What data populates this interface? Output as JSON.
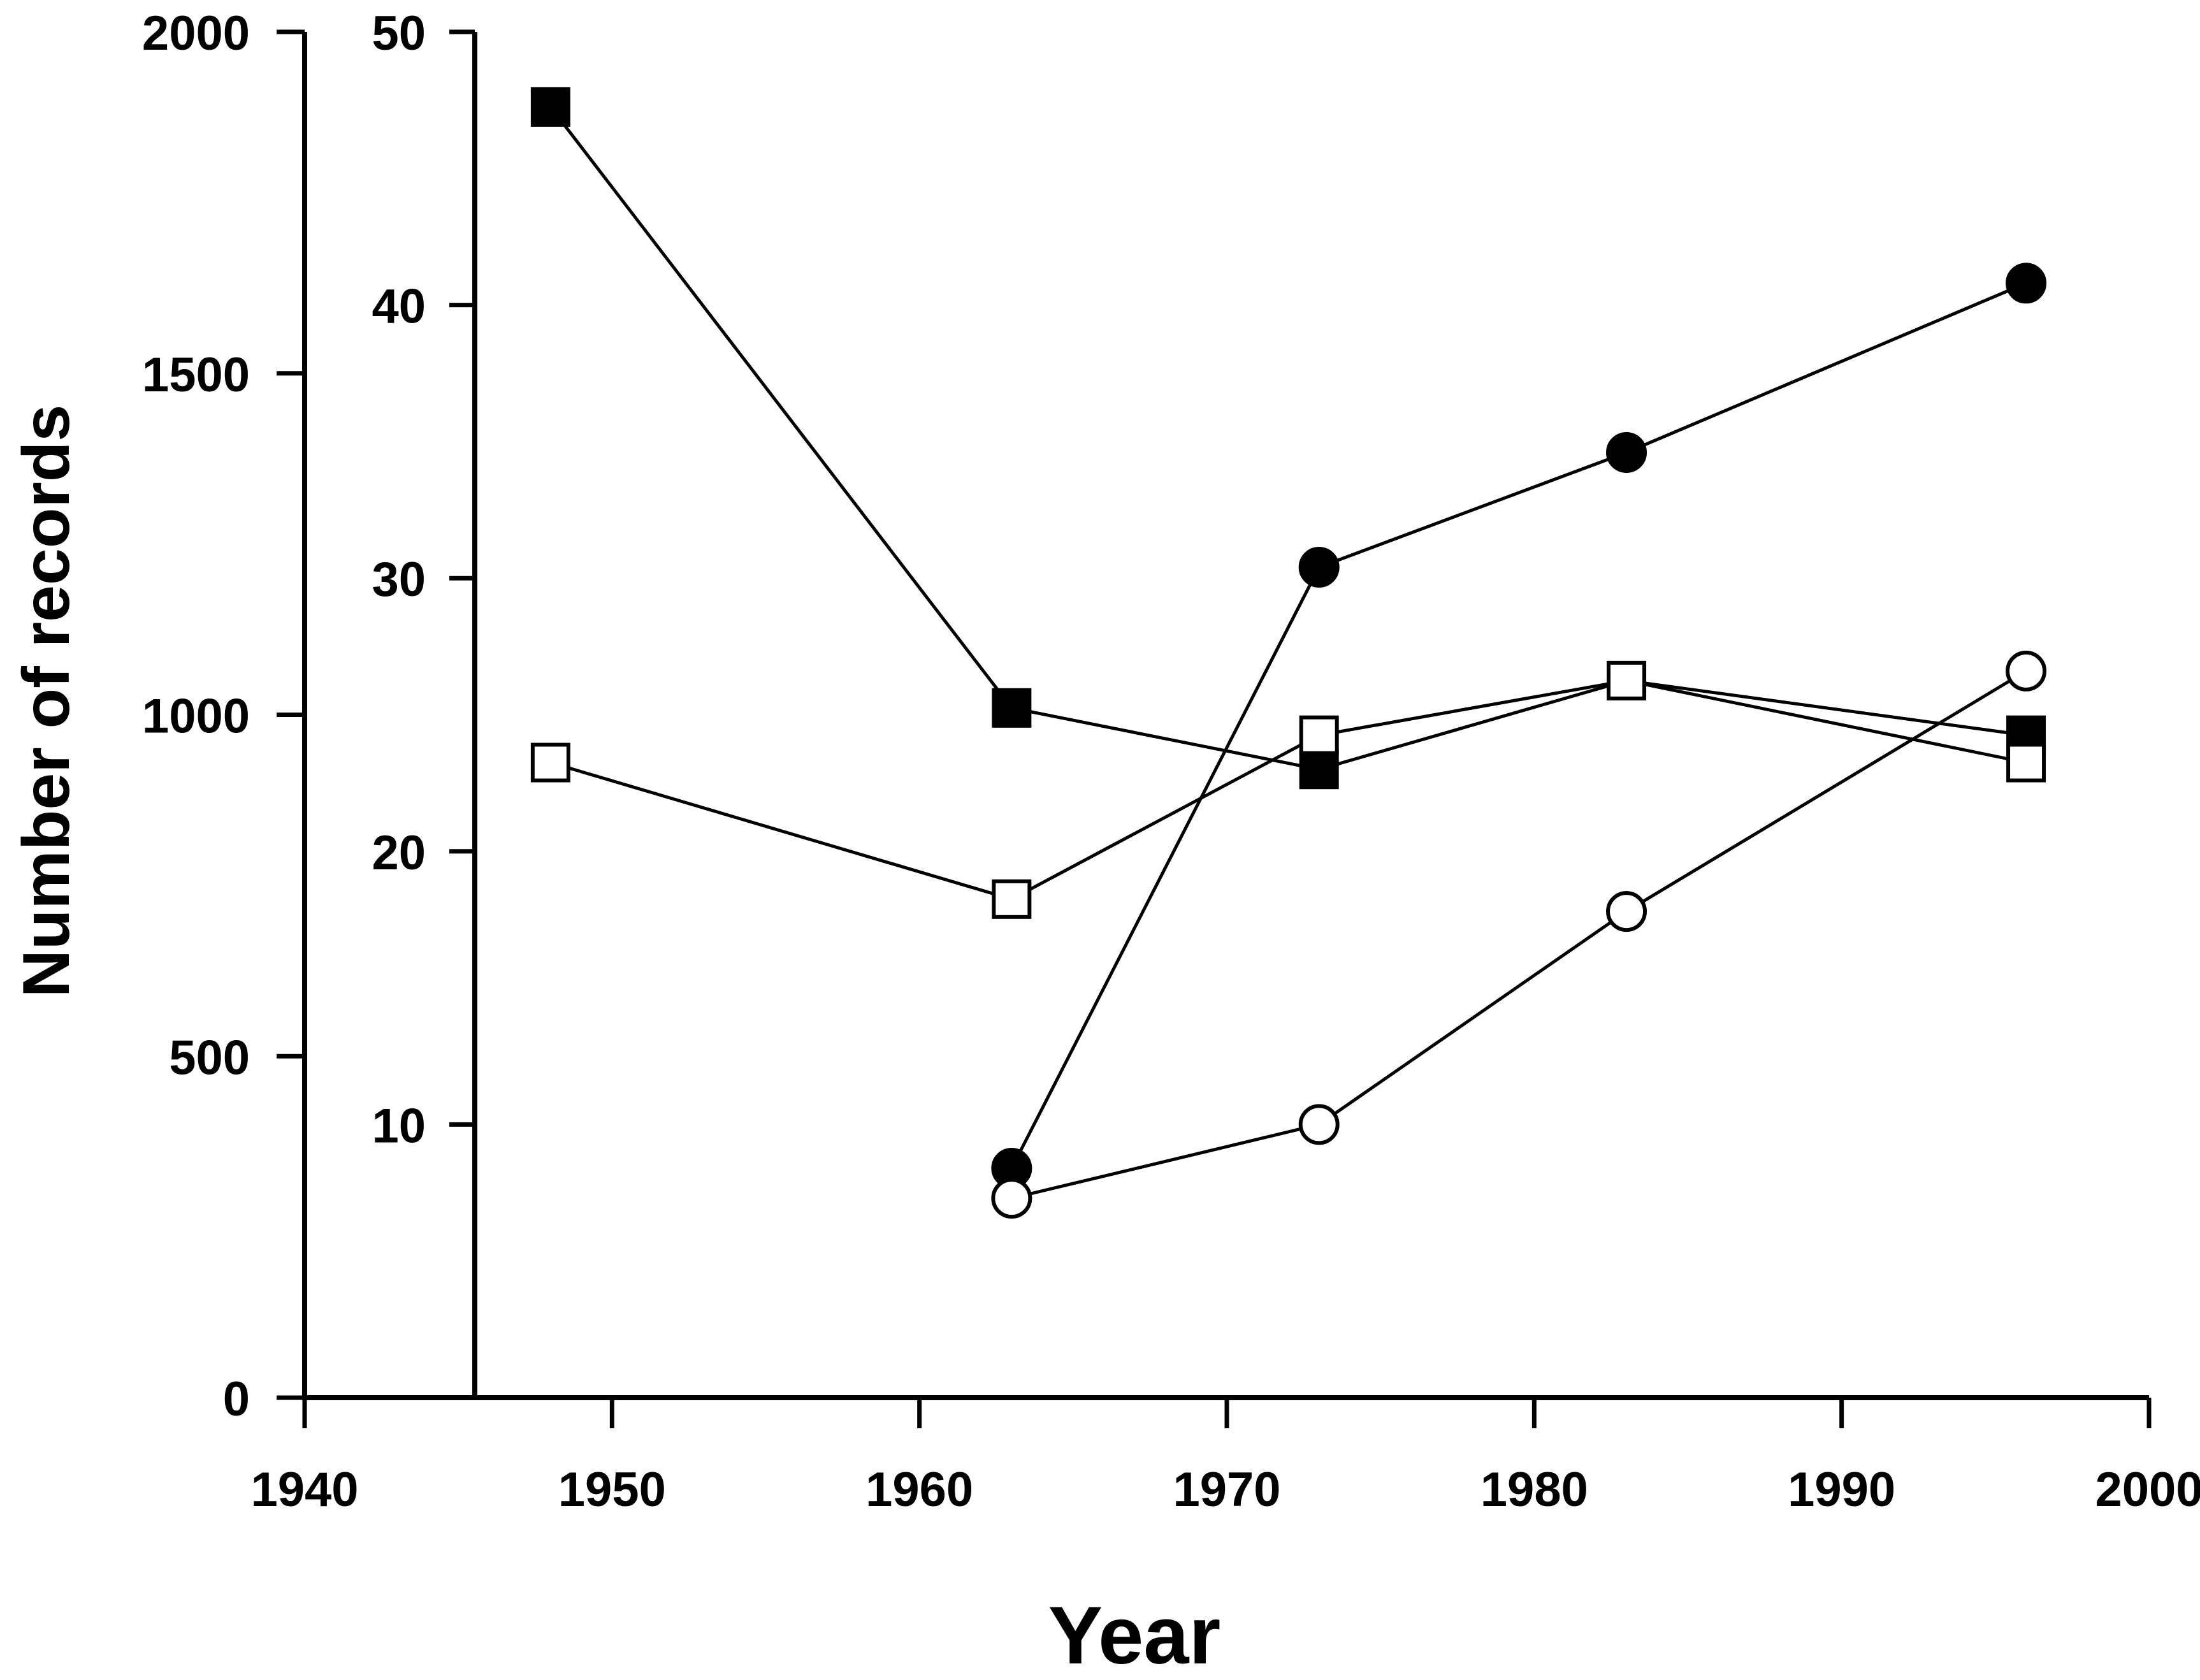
{
  "chart_data": {
    "type": "line",
    "xlabel": "Year",
    "ylabel": "Number of records",
    "xlim": [
      1940,
      2000
    ],
    "x_ticks": [
      1940,
      1950,
      1960,
      1970,
      1980,
      1990,
      2000
    ],
    "x_tick_labels": [
      "1940",
      "1950",
      "1960",
      "1970",
      "1980",
      "1990",
      "2000"
    ],
    "y_left": {
      "ylim": [
        0,
        2000
      ],
      "ticks": [
        0,
        500,
        1000,
        1500,
        2000
      ],
      "tick_labels": [
        "0",
        "500",
        "1000",
        "1500",
        "2000"
      ]
    },
    "y_right": {
      "ylim": [
        0,
        50
      ],
      "ticks": [
        10,
        20,
        30,
        40,
        50
      ],
      "tick_labels": [
        "10",
        "20",
        "30",
        "40",
        "50"
      ]
    },
    "grid": false,
    "series": [
      {
        "marker": "filled-square",
        "axis": "left",
        "x": [
          1948,
          1963,
          1973,
          1983,
          1996
        ],
        "y": [
          1890,
          1010,
          920,
          1050,
          970
        ]
      },
      {
        "marker": "open-square",
        "axis": "left",
        "x": [
          1948,
          1963,
          1973,
          1983,
          1996
        ],
        "y": [
          930,
          730,
          970,
          1050,
          930
        ]
      },
      {
        "marker": "filled-circle",
        "axis": "right",
        "x": [
          1963,
          1973,
          1983,
          1996
        ],
        "y": [
          8.4,
          30.4,
          34.6,
          40.8
        ]
      },
      {
        "marker": "open-circle",
        "axis": "right",
        "x": [
          1963,
          1973,
          1983,
          1996
        ],
        "y": [
          7.3,
          10.0,
          17.8,
          26.6
        ]
      }
    ]
  }
}
